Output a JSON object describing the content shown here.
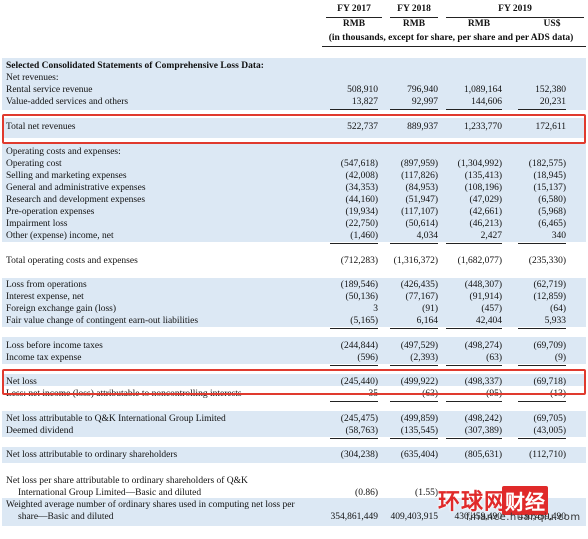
{
  "header": {
    "fy2017": "FY 2017",
    "fy2018": "FY 2018",
    "fy2019": "FY 2019",
    "units": [
      "RMB",
      "RMB",
      "RMB",
      "US$"
    ],
    "note": "(in thousands, except for share, per share and per ADS data)"
  },
  "rows": [
    {
      "label": "Selected Consolidated Statements of Comprehensive Loss Data:",
      "bold": true,
      "shade": true,
      "vals": [
        "",
        "",
        "",
        ""
      ]
    },
    {
      "label": "Net revenues:",
      "shade": true,
      "vals": [
        "",
        "",
        "",
        ""
      ]
    },
    {
      "label": "Rental service revenue",
      "shade": true,
      "vals": [
        "508,910",
        "796,940",
        "1,089,164",
        "152,380"
      ]
    },
    {
      "label": "Value-added services and others",
      "shade": true,
      "vals": [
        "13,827",
        "92,997",
        "144,606",
        "20,231"
      ]
    },
    {
      "label": "Total net revenues",
      "shade": true,
      "vals": [
        "522,737",
        "889,937",
        "1,233,770",
        "172,611"
      ]
    },
    {
      "label": "Operating costs and expenses:",
      "shade": true,
      "vals": [
        "",
        "",
        "",
        ""
      ]
    },
    {
      "label": "Operating cost",
      "shade": true,
      "vals": [
        "(547,618)",
        "(897,959)",
        "(1,304,992)",
        "(182,575)"
      ]
    },
    {
      "label": "Selling and marketing expenses",
      "shade": true,
      "vals": [
        "(42,008)",
        "(117,826)",
        "(135,413)",
        "(18,945)"
      ]
    },
    {
      "label": "General and administrative expenses",
      "shade": true,
      "vals": [
        "(34,353)",
        "(84,953)",
        "(108,196)",
        "(15,137)"
      ]
    },
    {
      "label": "Research and development expenses",
      "shade": true,
      "vals": [
        "(44,160)",
        "(51,947)",
        "(47,029)",
        "(6,580)"
      ]
    },
    {
      "label": "Pre-operation expenses",
      "shade": true,
      "vals": [
        "(19,934)",
        "(117,107)",
        "(42,661)",
        "(5,968)"
      ]
    },
    {
      "label": "Impairment loss",
      "shade": true,
      "vals": [
        "(22,750)",
        "(50,614)",
        "(46,213)",
        "(6,465)"
      ]
    },
    {
      "label": "Other (expense) income, net",
      "shade": true,
      "vals": [
        "(1,460)",
        "4,034",
        "2,427",
        "340"
      ]
    },
    {
      "label": "Total operating costs and expenses",
      "shade": false,
      "vals": [
        "(712,283)",
        "(1,316,372)",
        "(1,682,077)",
        "(235,330)"
      ]
    },
    {
      "label": "Loss from operations",
      "shade": true,
      "vals": [
        "(189,546)",
        "(426,435)",
        "(448,307)",
        "(62,719)"
      ]
    },
    {
      "label": "Interest expense, net",
      "shade": true,
      "vals": [
        "(50,136)",
        "(77,167)",
        "(91,914)",
        "(12,859)"
      ]
    },
    {
      "label": "Foreign exchange gain (loss)",
      "shade": true,
      "vals": [
        "3",
        "(91)",
        "(457)",
        "(64)"
      ]
    },
    {
      "label": "Fair value change of contingent earn-out liabilities",
      "shade": true,
      "vals": [
        "(5,165)",
        "6,164",
        "42,404",
        "5,933"
      ]
    },
    {
      "label": "Loss before income taxes",
      "shade": true,
      "vals": [
        "(244,844)",
        "(497,529)",
        "(498,274)",
        "(69,709)"
      ]
    },
    {
      "label": "Income tax expense",
      "shade": true,
      "vals": [
        "(596)",
        "(2,393)",
        "(63)",
        "(9)"
      ]
    },
    {
      "label": "Net loss",
      "shade": true,
      "vals": [
        "(245,440)",
        "(499,922)",
        "(498,337)",
        "(69,718)"
      ]
    },
    {
      "label": "Less: net income (loss) attributable to noncontrolling interests",
      "shade": false,
      "vals": [
        "35",
        "(63)",
        "(95)",
        "(13)"
      ]
    },
    {
      "label": "Net loss attributable to Q&K International Group Limited",
      "shade": true,
      "vals": [
        "(245,475)",
        "(499,859)",
        "(498,242)",
        "(69,705)"
      ]
    },
    {
      "label": "Deemed dividend",
      "shade": true,
      "vals": [
        "(58,763)",
        "(135,545)",
        "(307,389)",
        "(43,005)"
      ]
    },
    {
      "label": "Net loss attributable to ordinary shareholders",
      "shade": true,
      "vals": [
        "(304,238)",
        "(635,404)",
        "(805,631)",
        "(112,710)"
      ]
    },
    {
      "label": "Net loss per share attributable to ordinary shareholders of Q&K",
      "shade": false,
      "vals": [
        "",
        "",
        "",
        ""
      ]
    },
    {
      "label": "International Group Limited—Basic and diluted",
      "indent": true,
      "shade": false,
      "vals": [
        "(0.86)",
        "(1.55)",
        "",
        ""
      ]
    },
    {
      "label": "Weighted average number of ordinary shares used in computing net loss per",
      "shade": true,
      "vals": [
        "",
        "",
        "",
        ""
      ]
    },
    {
      "label": "share—Basic and diluted",
      "indent": true,
      "shade": true,
      "vals": [
        "354,861,449",
        "409,403,915",
        "430,459,490",
        "430,459,490"
      ]
    }
  ],
  "watermark": {
    "brand": "环球网",
    "section": "财经",
    "domain": "finance.huanqiu.com"
  },
  "colors": {
    "highlight": "#e03a2e",
    "shade": "#dce8f4",
    "watermark": "#e02a2a"
  }
}
